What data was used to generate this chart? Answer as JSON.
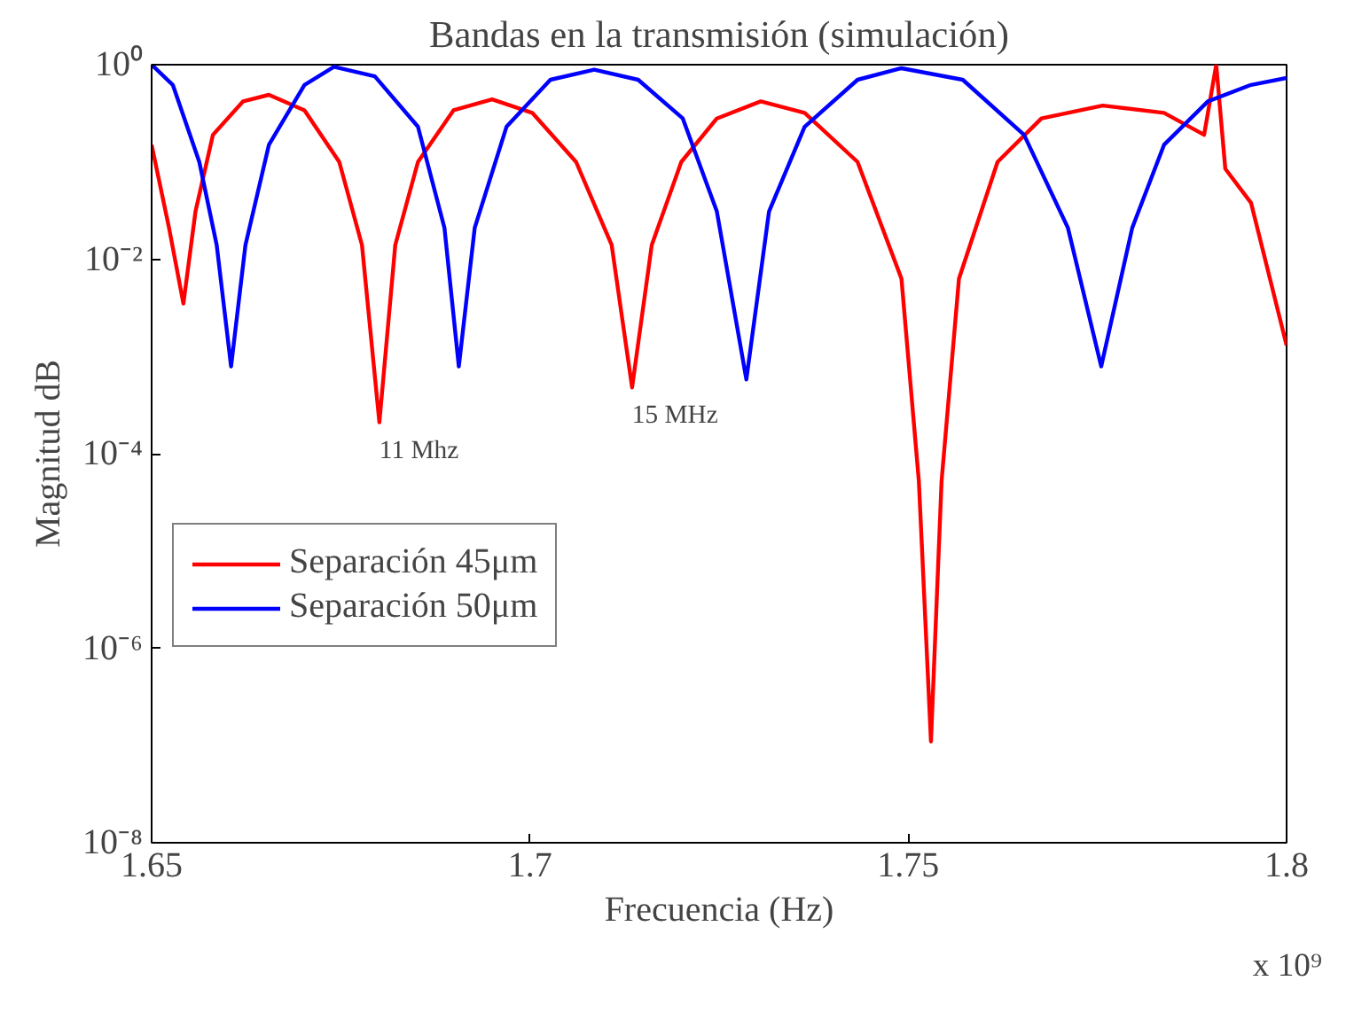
{
  "chart_data": {
    "type": "line",
    "title": "Bandas en la transmisión (simulación)",
    "xlabel": "Frecuencia (Hz)",
    "ylabel": "Magnitud dB",
    "log": "y",
    "grid": false,
    "legend": "left",
    "line_style": "solid",
    "marker": "none",
    "xlim": [
      1.65,
      1.8
    ],
    "xticks": [
      1.65,
      1.7,
      1.75,
      1.8
    ],
    "ylim": [
      1e-08,
      1
    ],
    "yticks": [
      {
        "value": 1e-08,
        "label": "10⁻⁸"
      },
      {
        "value": 1e-06,
        "label": "10⁻⁶"
      },
      {
        "value": 0.0001,
        "label": "10⁻⁴"
      },
      {
        "value": 0.01,
        "label": "10⁻²"
      },
      {
        "value": 1,
        "label": "10⁰"
      }
    ],
    "annotations": [
      {
        "text": "11 Mhz",
        "x": 1.6801,
        "y": 0.00021
      },
      {
        "text": "15 MHz",
        "x": 1.7135,
        "y": 0.00048
      },
      "x 10⁹"
    ],
    "series": [
      {
        "name": "Separación 45μm",
        "color": "#ff0000",
        "x": [
          1.65,
          1.6523,
          1.6542,
          1.6558,
          1.6581,
          1.6621,
          1.6655,
          1.6702,
          1.6748,
          1.6778,
          1.6801,
          1.6822,
          1.6852,
          1.6899,
          1.695,
          1.7003,
          1.7061,
          1.7108,
          1.7135,
          1.7161,
          1.72,
          1.7247,
          1.7305,
          1.7363,
          1.7433,
          1.7491,
          1.7514,
          1.753,
          1.7544,
          1.7567,
          1.7618,
          1.7676,
          1.7757,
          1.7838,
          1.7891,
          1.7907,
          1.7919,
          1.7953,
          1.8
        ],
        "values": [
          0.15,
          0.021,
          0.0035,
          0.031,
          0.19,
          0.42,
          0.49,
          0.34,
          0.1,
          0.014,
          0.00021,
          0.014,
          0.1,
          0.34,
          0.44,
          0.32,
          0.1,
          0.014,
          0.00048,
          0.014,
          0.1,
          0.28,
          0.42,
          0.32,
          0.1,
          0.0063,
          5.2e-05,
          1.1e-07,
          5.2e-05,
          0.0063,
          0.1,
          0.28,
          0.38,
          0.32,
          0.19,
          1.0,
          0.085,
          0.038,
          0.0013
        ]
      },
      {
        "name": "Separación 50μm",
        "color": "#0000ff",
        "x": [
          1.65,
          1.6528,
          1.6563,
          1.6586,
          1.6605,
          1.6624,
          1.6655,
          1.6702,
          1.6741,
          1.6795,
          1.6852,
          1.6887,
          1.6906,
          1.6927,
          1.6969,
          1.7027,
          1.7085,
          1.7143,
          1.7202,
          1.7247,
          1.7286,
          1.7316,
          1.7363,
          1.7433,
          1.7491,
          1.7572,
          1.7653,
          1.7711,
          1.7755,
          1.7796,
          1.7838,
          1.7896,
          1.7953,
          1.8
        ],
        "values": [
          1.0,
          0.62,
          0.1,
          0.014,
          0.00079,
          0.014,
          0.15,
          0.62,
          0.95,
          0.76,
          0.23,
          0.021,
          0.00079,
          0.021,
          0.23,
          0.7,
          0.89,
          0.7,
          0.28,
          0.031,
          0.00058,
          0.031,
          0.23,
          0.7,
          0.92,
          0.7,
          0.19,
          0.021,
          0.00079,
          0.021,
          0.15,
          0.42,
          0.62,
          0.73
        ]
      }
    ]
  }
}
